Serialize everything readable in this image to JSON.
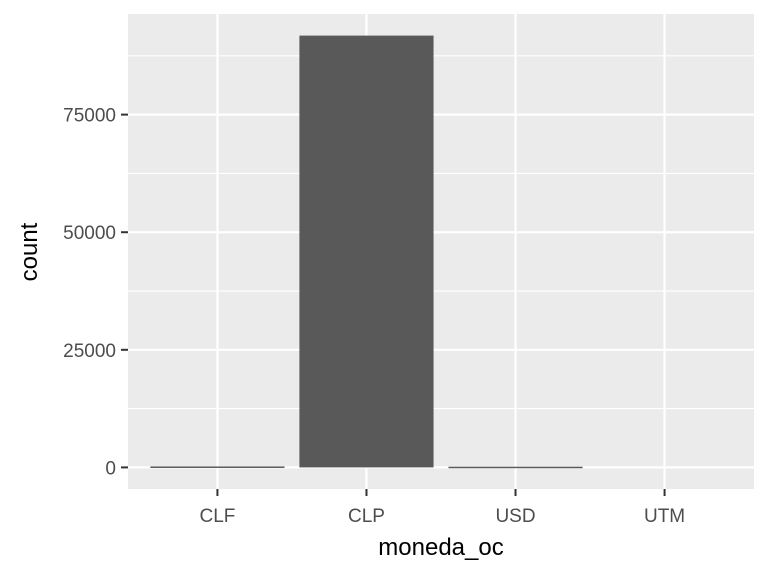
{
  "chart_data": {
    "type": "bar",
    "categories": [
      "CLF",
      "CLP",
      "USD",
      "UTM"
    ],
    "values": [
      200,
      91800,
      150,
      0
    ],
    "xlabel": "moneda_oc",
    "ylabel": "count",
    "ylim": [
      -4590,
      96390
    ],
    "yticks": [
      0,
      25000,
      50000,
      75000
    ],
    "ytick_labels": [
      "0",
      "25000",
      "50000",
      "75000"
    ],
    "grid": true,
    "legend": "none",
    "colors": {
      "bar": "#595959",
      "panel": "#ebebeb",
      "gridline": "#ffffff",
      "tick": "#333333"
    }
  }
}
